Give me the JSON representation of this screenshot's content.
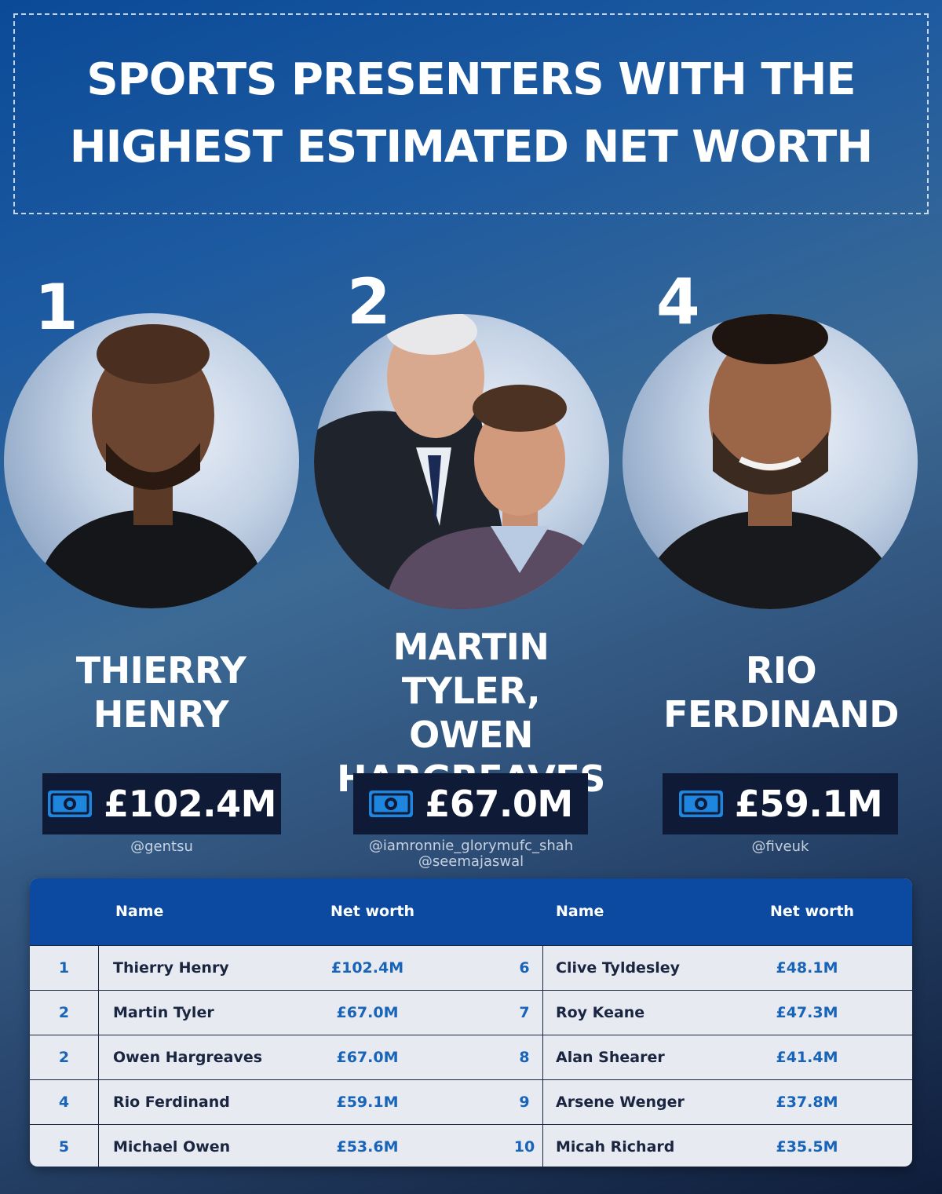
{
  "title": {
    "line1": "SPORTS PRESENTERS WITH THE",
    "line2": "HIGHEST ESTIMATED NET WORTH"
  },
  "featured": [
    {
      "rank": "1",
      "name_line1": "THIERRY",
      "name_line2": "HENRY",
      "worth": "£102.4M",
      "credit_line1": "@gentsu",
      "icon": "cash-icon"
    },
    {
      "rank": "2",
      "name_line1": "MARTIN TYLER,",
      "name_line2": "OWEN",
      "name_line3": "HARGREAVES",
      "worth": "£67.0M",
      "credit_line1": "@iamronnie_glorymufc_shah",
      "credit_line2": "@seemajaswal",
      "icon": "cash-icon"
    },
    {
      "rank": "4",
      "name_line1": "RIO",
      "name_line2": "FERDINAND",
      "worth": "£59.1M",
      "credit_line1": "@fiveuk",
      "icon": "cash-icon"
    }
  ],
  "table": {
    "headers": {
      "name_left": "Name",
      "worth_left": "Net worth",
      "name_right": "Name",
      "worth_right": "Net worth"
    },
    "rows": [
      {
        "rank_l": "1",
        "name_l": "Thierry Henry",
        "worth_l": "£102.4M",
        "rank_r": "6",
        "name_r": "Clive Tyldesley",
        "worth_r": "£48.1M"
      },
      {
        "rank_l": "2",
        "name_l": "Martin Tyler",
        "worth_l": "£67.0M",
        "rank_r": "7",
        "name_r": "Roy Keane",
        "worth_r": "£47.3M"
      },
      {
        "rank_l": "2",
        "name_l": "Owen Hargreaves",
        "worth_l": "£67.0M",
        "rank_r": "8",
        "name_r": "Alan Shearer",
        "worth_r": "£41.4M"
      },
      {
        "rank_l": "4",
        "name_l": "Rio Ferdinand",
        "worth_l": "£59.1M",
        "rank_r": "9",
        "name_r": "Arsene Wenger",
        "worth_r": "£37.8M"
      },
      {
        "rank_l": "5",
        "name_l": "Michael Owen",
        "worth_l": "£53.6M",
        "rank_r": "10",
        "name_r": "Micah Richard",
        "worth_r": "£35.5M"
      }
    ]
  },
  "colors": {
    "header_blue": "#0b4aa0",
    "badge_dark": "#0e1a36",
    "accent_blue": "#1764b8",
    "cash_icon": "#1f86e0"
  }
}
